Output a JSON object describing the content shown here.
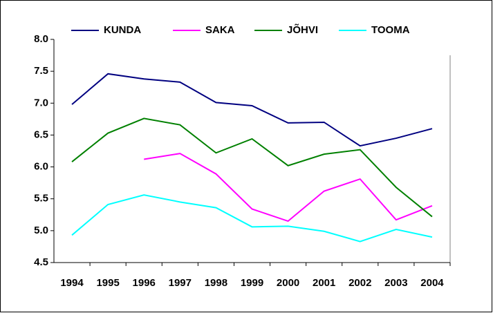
{
  "chart_data": {
    "type": "line",
    "categories": [
      "1994",
      "1995",
      "1996",
      "1997",
      "1998",
      "1999",
      "2000",
      "2001",
      "2002",
      "2003",
      "2004"
    ],
    "series": [
      {
        "name": "KUNDA",
        "color": "#000080",
        "values": [
          6.98,
          7.46,
          7.38,
          7.33,
          7.01,
          6.96,
          6.69,
          6.7,
          6.33,
          6.45,
          6.6
        ]
      },
      {
        "name": "SAKA",
        "color": "#ff00ff",
        "values": [
          null,
          null,
          6.12,
          6.21,
          5.89,
          5.34,
          5.15,
          5.62,
          5.81,
          5.17,
          5.39
        ]
      },
      {
        "name": "JÕHVI",
        "color": "#008000",
        "values": [
          6.08,
          6.53,
          6.76,
          6.66,
          6.22,
          6.44,
          6.02,
          6.2,
          6.27,
          5.68,
          5.22
        ]
      },
      {
        "name": "TOOMA",
        "color": "#00ffff",
        "values": [
          4.93,
          5.41,
          5.56,
          5.45,
          5.36,
          5.06,
          5.07,
          4.99,
          4.83,
          5.02,
          4.9
        ]
      }
    ],
    "ylim": [
      4.5,
      8.0
    ],
    "yticks": [
      4.5,
      {
        "value": 5.0,
        "label": "5.0"
      },
      5.5,
      {
        "value": 6.0,
        "label": "6.0"
      },
      6.5,
      {
        "value": 7.0,
        "label": "7.0"
      },
      7.5,
      {
        "value": 8.0,
        "label": "8.0"
      }
    ],
    "legend": "top"
  }
}
